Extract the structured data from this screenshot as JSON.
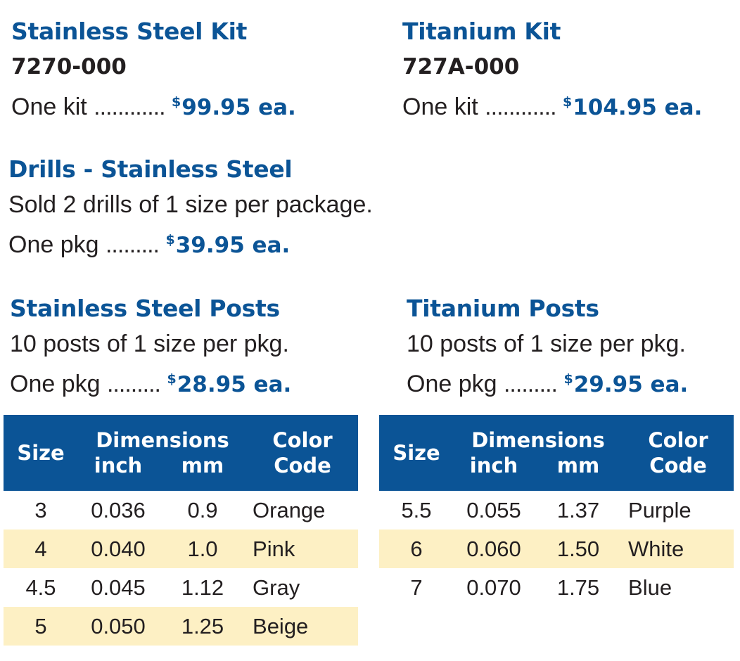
{
  "stainless_kit": {
    "title": "Stainless Steel Kit",
    "sku": "7270-000",
    "qty_label": "One kit",
    "dots": "............",
    "currency": "$",
    "price": "99.95 ea."
  },
  "titanium_kit": {
    "title": "Titanium Kit",
    "sku": "727A-000",
    "qty_label": "One kit",
    "dots": "............",
    "currency": "$",
    "price": "104.95 ea."
  },
  "drills": {
    "title": "Drills - Stainless Steel",
    "description": "Sold 2 drills of 1 size per package.",
    "qty_label": "One pkg",
    "dots": ".........",
    "currency": "$",
    "price": "39.95 ea."
  },
  "stainless_posts": {
    "title": "Stainless Steel Posts",
    "description": "10 posts of 1 size per pkg.",
    "qty_label": "One pkg",
    "dots": ".........",
    "currency": "$",
    "price": "28.95 ea."
  },
  "titanium_posts": {
    "title": "Titanium Posts",
    "description": "10 posts of 1 size per pkg.",
    "qty_label": "One pkg",
    "dots": ".........",
    "currency": "$",
    "price": "29.95 ea."
  },
  "table_headers": {
    "size": "Size",
    "dimensions": "Dimensions",
    "inch": "inch",
    "mm": "mm",
    "color_line1": "Color",
    "color_line2": "Code"
  },
  "stainless_table": [
    {
      "size": "3",
      "inch": "0.036",
      "mm": "0.9",
      "color": "Orange"
    },
    {
      "size": "4",
      "inch": "0.040",
      "mm": "1.0",
      "color": "Pink"
    },
    {
      "size": "4.5",
      "inch": "0.045",
      "mm": "1.12",
      "color": "Gray"
    },
    {
      "size": "5",
      "inch": "0.050",
      "mm": "1.25",
      "color": "Beige"
    }
  ],
  "titanium_table": [
    {
      "size": "5.5",
      "inch": "0.055",
      "mm": "1.37",
      "color": "Purple"
    },
    {
      "size": "6",
      "inch": "0.060",
      "mm": "1.50",
      "color": "White"
    },
    {
      "size": "7",
      "inch": "0.070",
      "mm": "1.75",
      "color": "Blue"
    }
  ],
  "colors": {
    "brand_blue": "#0b5496",
    "row_highlight": "#fdf0c4",
    "text": "#231f20"
  }
}
